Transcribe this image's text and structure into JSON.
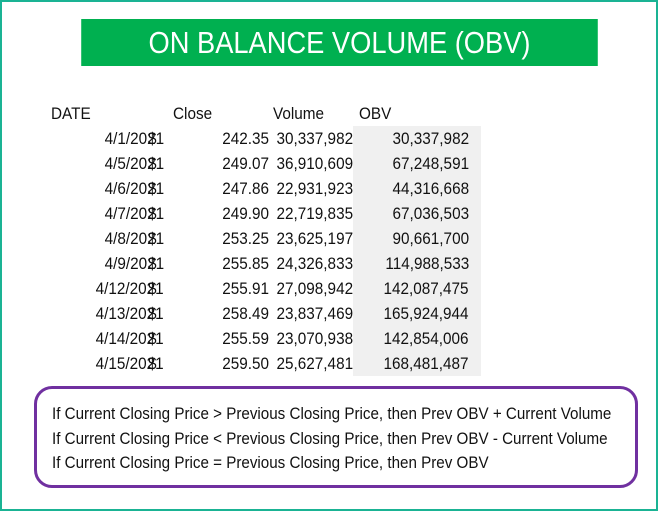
{
  "title": "ON BALANCE VOLUME (OBV)",
  "headers": {
    "date": "DATE",
    "close": "Close",
    "volume": "Volume",
    "obv": "OBV"
  },
  "rows": [
    {
      "date": "4/1/2021",
      "currency": "$",
      "close": "242.35",
      "volume": "30,337,982",
      "obv": "30,337,982"
    },
    {
      "date": "4/5/2021",
      "currency": "$",
      "close": "249.07",
      "volume": "36,910,609",
      "obv": "67,248,591"
    },
    {
      "date": "4/6/2021",
      "currency": "$",
      "close": "247.86",
      "volume": "22,931,923",
      "obv": "44,316,668"
    },
    {
      "date": "4/7/2021",
      "currency": "$",
      "close": "249.90",
      "volume": "22,719,835",
      "obv": "67,036,503"
    },
    {
      "date": "4/8/2021",
      "currency": "$",
      "close": "253.25",
      "volume": "23,625,197",
      "obv": "90,661,700"
    },
    {
      "date": "4/9/2021",
      "currency": "$",
      "close": "255.85",
      "volume": "24,326,833",
      "obv": "114,988,533"
    },
    {
      "date": "4/12/2021",
      "currency": "$",
      "close": "255.91",
      "volume": "27,098,942",
      "obv": "142,087,475"
    },
    {
      "date": "4/13/2021",
      "currency": "$",
      "close": "258.49",
      "volume": "23,837,469",
      "obv": "165,924,944"
    },
    {
      "date": "4/14/2021",
      "currency": "$",
      "close": "255.59",
      "volume": "23,070,938",
      "obv": "142,854,006"
    },
    {
      "date": "4/15/2021",
      "currency": "$",
      "close": "259.50",
      "volume": "25,627,481",
      "obv": "168,481,487"
    }
  ],
  "rules": [
    "If Current Closing Price > Previous Closing Price, then Prev OBV + Current Volume",
    "If Current Closing Price < Previous Closing Price, then Prev OBV - Current Volume",
    "If Current Closing Price = Previous Closing Price, then Prev OBV"
  ],
  "colors": {
    "banner": "#00b050",
    "frame": "#1ab394",
    "rules_border": "#7030a0",
    "obv_shading": "#f0f0f0"
  }
}
